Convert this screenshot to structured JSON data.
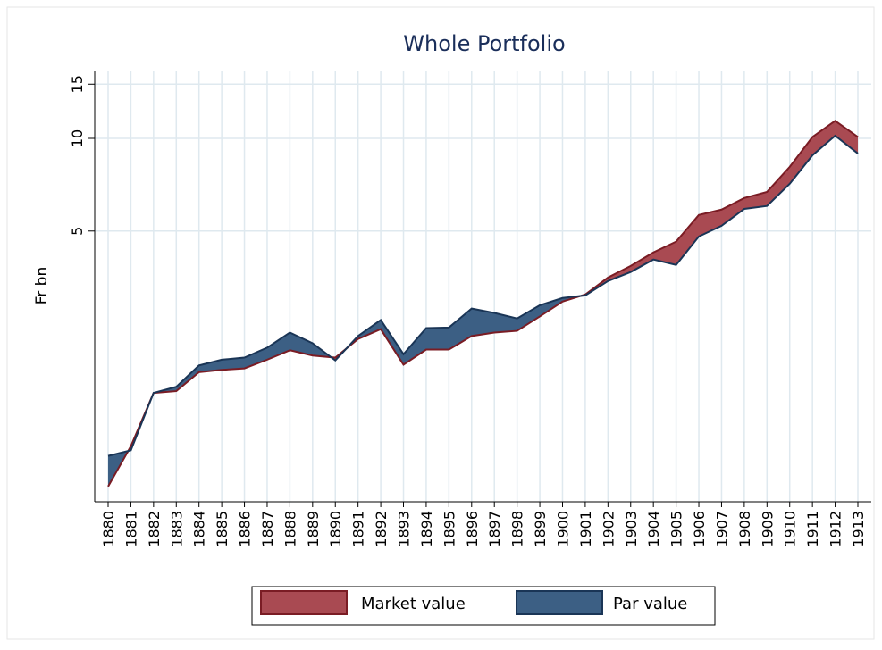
{
  "chart_data": {
    "type": "area-range",
    "title": "Whole Portfolio",
    "y_label": "Fr bn",
    "categories": [
      "1880",
      "1881",
      "1882",
      "1883",
      "1884",
      "1885",
      "1886",
      "1887",
      "1888",
      "1889",
      "1890",
      "1891",
      "1892",
      "1893",
      "1894",
      "1895",
      "1896",
      "1897",
      "1898",
      "1899",
      "1900",
      "1901",
      "1902",
      "1903",
      "1904",
      "1905",
      "1906",
      "1907",
      "1908",
      "1909",
      "1910",
      "1911",
      "1912",
      "1913"
    ],
    "series": [
      {
        "name": "Market value",
        "color": "#a94a52",
        "line_color": "#7a1c24",
        "values": [
          0.74,
          1.0,
          1.49,
          1.51,
          1.74,
          1.77,
          1.79,
          1.91,
          2.05,
          1.97,
          1.94,
          2.23,
          2.4,
          1.84,
          2.06,
          2.06,
          2.28,
          2.34,
          2.37,
          2.64,
          2.95,
          3.11,
          3.53,
          3.85,
          4.26,
          4.62,
          5.64,
          5.87,
          6.4,
          6.7,
          8.08,
          10.1,
          11.4,
          10.1
        ]
      },
      {
        "name": "Par value",
        "color": "#3c5f84",
        "line_color": "#1a3556",
        "values": [
          0.93,
          0.97,
          1.49,
          1.56,
          1.83,
          1.91,
          1.94,
          2.09,
          2.34,
          2.16,
          1.9,
          2.28,
          2.57,
          1.99,
          2.42,
          2.43,
          2.8,
          2.71,
          2.6,
          2.87,
          3.03,
          3.09,
          3.44,
          3.68,
          4.04,
          3.88,
          4.8,
          5.2,
          5.9,
          6.03,
          7.12,
          8.81,
          10.2,
          8.93
        ]
      }
    ],
    "ylim": [
      0.66,
      16.5
    ],
    "yticks": [
      5,
      10,
      15
    ],
    "log_y": true,
    "grid": true
  }
}
